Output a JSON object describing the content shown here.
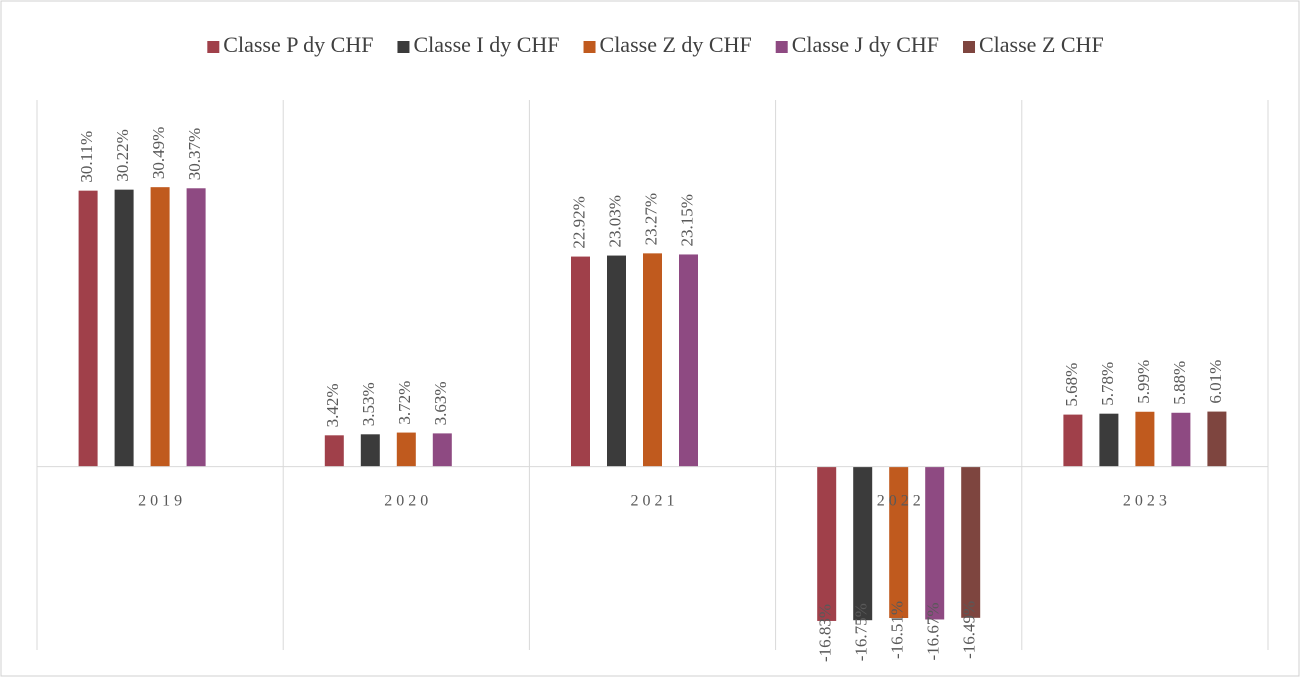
{
  "chart_data": {
    "type": "bar",
    "categories": [
      "2019",
      "2020",
      "2021",
      "2022",
      "2023"
    ],
    "series": [
      {
        "name": "Classe P dy CHF",
        "color": "#a0404a",
        "values": [
          30.11,
          3.42,
          22.92,
          -16.83,
          5.68
        ],
        "value_labels": [
          "30.11%",
          "3.42%",
          "22.92%",
          "-16.83%",
          "5.68%"
        ]
      },
      {
        "name": "Classe I dy CHF",
        "color": "#3b3b3b",
        "values": [
          30.22,
          3.53,
          23.03,
          -16.75,
          5.78
        ],
        "value_labels": [
          "30.22%",
          "3.53%",
          "23.03%",
          "-16.75%",
          "5.78%"
        ]
      },
      {
        "name": "Classe Z dy CHF",
        "color": "#c05a1e",
        "values": [
          30.49,
          3.72,
          23.27,
          -16.51,
          5.99
        ],
        "value_labels": [
          "30.49%",
          "3.72%",
          "23.27%",
          "-16.51%",
          "5.99%"
        ]
      },
      {
        "name": "Classe J dy CHF",
        "color": "#8e4a82",
        "values": [
          30.37,
          3.63,
          23.15,
          -16.67,
          5.88
        ],
        "value_labels": [
          "30.37%",
          "3.63%",
          "23.15%",
          "-16.67%",
          "5.88%"
        ]
      },
      {
        "name": "Classe Z CHF",
        "color": "#7e453f",
        "values": [
          null,
          null,
          null,
          -16.49,
          6.01
        ],
        "value_labels": [
          null,
          null,
          null,
          "-16.49%",
          "6.01%"
        ]
      }
    ],
    "ylim": [
      -20,
      40
    ],
    "legend": "top"
  }
}
